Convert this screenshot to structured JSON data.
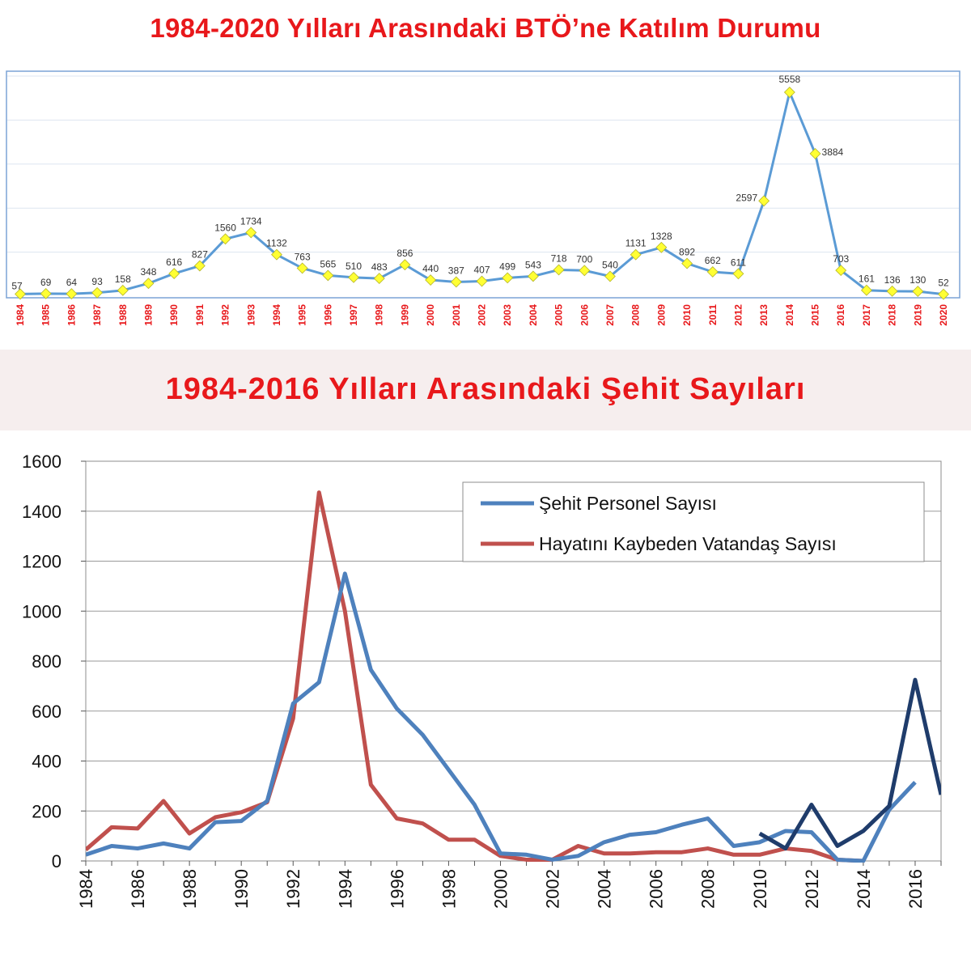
{
  "chart_data": [
    {
      "type": "line",
      "title": "1984-2020 Yılları Arasındaki BTÖ’ne Katılım Durumu",
      "categories": [
        "1984",
        "1985",
        "1986",
        "1987",
        "1988",
        "1989",
        "1990",
        "1991",
        "1992",
        "1993",
        "1994",
        "1995",
        "1996",
        "1997",
        "1998",
        "1999",
        "2000",
        "2001",
        "2002",
        "2003",
        "2004",
        "2005",
        "2006",
        "2007",
        "2008",
        "2009",
        "2010",
        "2011",
        "2012",
        "2013",
        "2014",
        "2015",
        "2016",
        "2017",
        "2018",
        "2019",
        "2020"
      ],
      "series": [
        {
          "values": [
            57,
            69,
            64,
            93,
            158,
            348,
            616,
            827,
            1560,
            1734,
            1132,
            763,
            565,
            510,
            483,
            856,
            440,
            387,
            407,
            499,
            543,
            718,
            700,
            540,
            1131,
            1328,
            892,
            662,
            611,
            2597,
            5558,
            3884,
            703,
            161,
            136,
            130,
            52
          ],
          "color": "#5b9bd5"
        }
      ],
      "marker_color": "#ffff33",
      "label_color": "#333333",
      "tick_label_color": "#e8181b",
      "grid": true,
      "ylim": [
        0,
        6000
      ]
    },
    {
      "type": "line",
      "title": "1984-2016 Yılları Arasındaki Şehit Sayıları",
      "x": [
        1984,
        1985,
        1986,
        1987,
        1988,
        1989,
        1990,
        1991,
        1992,
        1993,
        1994,
        1995,
        1996,
        1997,
        1998,
        1999,
        2000,
        2001,
        2002,
        2003,
        2004,
        2005,
        2006,
        2007,
        2008,
        2009,
        2010,
        2011,
        2012,
        2013,
        2014,
        2015,
        2016,
        2017
      ],
      "xticks": [
        "1984",
        "1986",
        "1988",
        "1990",
        "1992",
        "1994",
        "1996",
        "1998",
        "2000",
        "2002",
        "2004",
        "2006",
        "2008",
        "2010",
        "2012",
        "2014",
        "2016"
      ],
      "yticks": [
        "0",
        "200",
        "400",
        "600",
        "800",
        "1000",
        "1200",
        "1400",
        "1600"
      ],
      "ylim": [
        0,
        1600
      ],
      "xlim": [
        1984,
        2017
      ],
      "grid": true,
      "legend": "top-right",
      "series": [
        {
          "name": "Şehit Personel Sayısı",
          "color": "#4e81bd",
          "x": [
            1984,
            1985,
            1986,
            1987,
            1988,
            1989,
            1990,
            1991,
            1992,
            1993,
            1994,
            1995,
            1996,
            1997,
            1998,
            1999,
            2000,
            2001,
            2002,
            2003,
            2004,
            2005,
            2006,
            2007,
            2008,
            2009,
            2010,
            2011,
            2012,
            2013,
            2014,
            2015,
            2016
          ],
          "values": [
            25,
            60,
            50,
            70,
            50,
            155,
            160,
            240,
            630,
            715,
            1150,
            765,
            610,
            505,
            365,
            225,
            30,
            25,
            5,
            20,
            75,
            105,
            115,
            145,
            170,
            60,
            75,
            120,
            115,
            5,
            0,
            205,
            315
          ]
        },
        {
          "name": "Hayatını Kaybeden Vatandaş Sayısı",
          "color": "#c0504d",
          "x": [
            1984,
            1985,
            1986,
            1987,
            1988,
            1989,
            1990,
            1991,
            1992,
            1993,
            1994,
            1995,
            1996,
            1997,
            1998,
            1999,
            2000,
            2001,
            2002,
            2003,
            2004,
            2005,
            2006,
            2007,
            2008,
            2009,
            2010,
            2011,
            2012,
            2013,
            2014
          ],
          "values": [
            45,
            135,
            130,
            240,
            110,
            175,
            195,
            235,
            570,
            1475,
            1000,
            305,
            170,
            150,
            85,
            85,
            20,
            5,
            5,
            60,
            30,
            30,
            35,
            35,
            50,
            25,
            25,
            50,
            40,
            5,
            0
          ]
        },
        {
          "color": "#1f3c6b",
          "x": [
            2010,
            2011,
            2012,
            2013,
            2014,
            2015,
            2016,
            2017
          ],
          "values": [
            110,
            50,
            225,
            60,
            120,
            220,
            725,
            265
          ]
        }
      ]
    }
  ]
}
